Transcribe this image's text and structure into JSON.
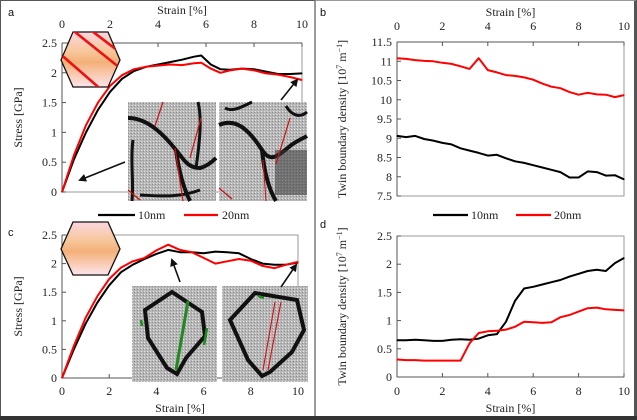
{
  "figure": {
    "panels": [
      "a",
      "b",
      "c",
      "d"
    ],
    "legend": [
      {
        "label": "10nm",
        "color": "#000000"
      },
      {
        "label": "20nm",
        "color": "#ff0000"
      }
    ]
  },
  "chart_data": [
    {
      "panel": "a",
      "type": "line",
      "xlabel": "Strain [%]",
      "ylabel": "Stress [GPa]",
      "xlim": [
        0,
        10
      ],
      "ylim": [
        0,
        2.5
      ],
      "xticks": [
        "0",
        "2",
        "4",
        "6",
        "8",
        "10"
      ],
      "yticks": [
        "0",
        "0.5",
        "1",
        "1.5",
        "2",
        "2.5"
      ],
      "x_axis_position": "top",
      "inset": "hexagonal grain with inclined red twin boundaries; two atomistic snapshots with red twin lines",
      "series": [
        {
          "name": "10nm",
          "color": "#000000",
          "x": [
            0,
            0.5,
            1,
            1.5,
            2,
            2.5,
            3,
            3.5,
            4,
            4.5,
            5,
            5.5,
            5.8,
            6.2,
            6.6,
            7,
            7.5,
            8,
            8.5,
            9,
            9.5,
            10
          ],
          "y": [
            0,
            0.55,
            1.0,
            1.38,
            1.68,
            1.9,
            2.03,
            2.1,
            2.14,
            2.18,
            2.22,
            2.27,
            2.29,
            2.14,
            2.06,
            2.05,
            2.07,
            2.06,
            2.02,
            1.98,
            1.98,
            1.99
          ]
        },
        {
          "name": "20nm",
          "color": "#ff0000",
          "x": [
            0,
            0.5,
            1,
            1.5,
            2,
            2.5,
            3,
            3.5,
            4,
            4.5,
            5,
            5.5,
            5.8,
            6.2,
            6.6,
            7,
            7.5,
            8,
            8.5,
            9,
            9.5,
            10
          ],
          "y": [
            0,
            0.62,
            1.12,
            1.5,
            1.78,
            1.96,
            2.06,
            2.1,
            2.12,
            2.14,
            2.13,
            2.16,
            2.17,
            2.07,
            2.0,
            2.04,
            2.07,
            2.04,
            1.99,
            1.97,
            1.93,
            1.88
          ]
        }
      ]
    },
    {
      "panel": "b",
      "type": "line",
      "xlabel": "Strain [%]",
      "ylabel": "Twin boundary density [10^7 m^-1]",
      "xlim": [
        0,
        10
      ],
      "ylim": [
        7.5,
        11.5
      ],
      "xticks": [
        "0",
        "2",
        "4",
        "6",
        "8",
        "10"
      ],
      "yticks": [
        "7.5",
        "8",
        "8.5",
        "9",
        "9.5",
        "10",
        "10.5",
        "11",
        "11.5"
      ],
      "x_axis_position": "top",
      "series": [
        {
          "name": "10nm",
          "color": "#000000",
          "x": [
            0,
            0.4,
            0.8,
            1.2,
            1.6,
            2,
            2.4,
            2.8,
            3.2,
            3.6,
            4,
            4.4,
            4.8,
            5.2,
            5.6,
            6,
            6.4,
            6.8,
            7.2,
            7.6,
            8,
            8.4,
            8.8,
            9.2,
            9.6,
            10
          ],
          "y": [
            9.06,
            9.03,
            9.06,
            8.98,
            8.94,
            8.88,
            8.84,
            8.74,
            8.68,
            8.62,
            8.55,
            8.57,
            8.48,
            8.4,
            8.36,
            8.3,
            8.24,
            8.18,
            8.12,
            7.98,
            7.98,
            8.14,
            8.12,
            8.03,
            8.04,
            7.93
          ]
        },
        {
          "name": "20nm",
          "color": "#ff0000",
          "x": [
            0,
            0.4,
            0.8,
            1.2,
            1.6,
            2,
            2.4,
            2.8,
            3.2,
            3.6,
            4,
            4.4,
            4.8,
            5.2,
            5.6,
            6,
            6.4,
            6.8,
            7.2,
            7.6,
            8,
            8.4,
            8.8,
            9.2,
            9.6,
            10
          ],
          "y": [
            11.08,
            11.06,
            11.03,
            11.01,
            11.0,
            10.96,
            10.93,
            10.87,
            10.8,
            11.08,
            10.77,
            10.71,
            10.64,
            10.62,
            10.58,
            10.52,
            10.42,
            10.34,
            10.3,
            10.2,
            10.13,
            10.18,
            10.14,
            10.13,
            10.07,
            10.12
          ]
        }
      ]
    },
    {
      "panel": "c",
      "type": "line",
      "xlabel": "Strain [%]",
      "ylabel": "Stress [GPa]",
      "xlim": [
        0,
        10
      ],
      "ylim": [
        0,
        2.5
      ],
      "xticks": [
        "0",
        "2",
        "4",
        "6",
        "8",
        "10"
      ],
      "yticks": [
        "0",
        "0.5",
        "1",
        "1.5",
        "2",
        "2.5"
      ],
      "x_axis_position": "bottom",
      "inset": "hexagonal grain without twins; two atomistic snapshots with green and red twin lines",
      "series": [
        {
          "name": "10nm",
          "color": "#000000",
          "x": [
            0,
            0.5,
            1,
            1.5,
            2,
            2.5,
            3,
            3.5,
            4,
            4.5,
            5,
            5.5,
            6,
            6.5,
            7,
            7.5,
            8,
            8.5,
            9,
            9.5,
            10
          ],
          "y": [
            0,
            0.5,
            0.95,
            1.32,
            1.62,
            1.85,
            1.98,
            2.08,
            2.17,
            2.24,
            2.2,
            2.2,
            2.18,
            2.21,
            2.2,
            2.18,
            2.08,
            2.0,
            1.98,
            1.98,
            2.02
          ]
        },
        {
          "name": "20nm",
          "color": "#ff0000",
          "x": [
            0,
            0.5,
            1,
            1.5,
            2,
            2.5,
            3,
            3.5,
            4,
            4.5,
            5,
            5.5,
            6,
            6.5,
            7,
            7.5,
            8,
            8.5,
            9,
            9.5,
            10
          ],
          "y": [
            0,
            0.56,
            1.05,
            1.43,
            1.73,
            1.93,
            2.04,
            2.1,
            2.23,
            2.33,
            2.24,
            2.2,
            2.1,
            2.0,
            2.04,
            2.08,
            2.05,
            1.96,
            1.92,
            1.98,
            2.03
          ]
        }
      ]
    },
    {
      "panel": "d",
      "type": "line",
      "xlabel": "Strain [%]",
      "ylabel": "Twin boundary density [10^7 m^-1]",
      "xlim": [
        0,
        10
      ],
      "ylim": [
        0,
        2.5
      ],
      "xticks": [
        "0",
        "2",
        "4",
        "6",
        "8",
        "10"
      ],
      "yticks": [
        "0",
        "0.5",
        "1",
        "1.5",
        "2",
        "2.5"
      ],
      "x_axis_position": "bottom",
      "series": [
        {
          "name": "10nm",
          "color": "#000000",
          "x": [
            0,
            0.4,
            0.8,
            1.2,
            1.6,
            2,
            2.4,
            2.8,
            3.2,
            3.6,
            4,
            4.4,
            4.8,
            5.2,
            5.6,
            6,
            6.4,
            6.8,
            7.2,
            7.6,
            8,
            8.4,
            8.8,
            9.2,
            9.6,
            10
          ],
          "y": [
            0.65,
            0.65,
            0.66,
            0.65,
            0.64,
            0.64,
            0.66,
            0.67,
            0.66,
            0.68,
            0.74,
            0.76,
            0.98,
            1.35,
            1.57,
            1.6,
            1.64,
            1.68,
            1.72,
            1.78,
            1.83,
            1.88,
            1.9,
            1.88,
            2.02,
            2.11
          ]
        },
        {
          "name": "20nm",
          "color": "#ff0000",
          "x": [
            0,
            0.4,
            0.8,
            1.2,
            1.6,
            2,
            2.4,
            2.8,
            3.2,
            3.6,
            4,
            4.4,
            4.8,
            5.2,
            5.6,
            6,
            6.4,
            6.8,
            7.2,
            7.6,
            8,
            8.4,
            8.8,
            9.2,
            9.6,
            10
          ],
          "y": [
            0.31,
            0.3,
            0.3,
            0.29,
            0.29,
            0.29,
            0.29,
            0.29,
            0.6,
            0.78,
            0.81,
            0.82,
            0.84,
            0.89,
            0.98,
            0.97,
            0.96,
            0.97,
            1.06,
            1.1,
            1.16,
            1.22,
            1.23,
            1.2,
            1.19,
            1.18
          ]
        }
      ]
    }
  ]
}
